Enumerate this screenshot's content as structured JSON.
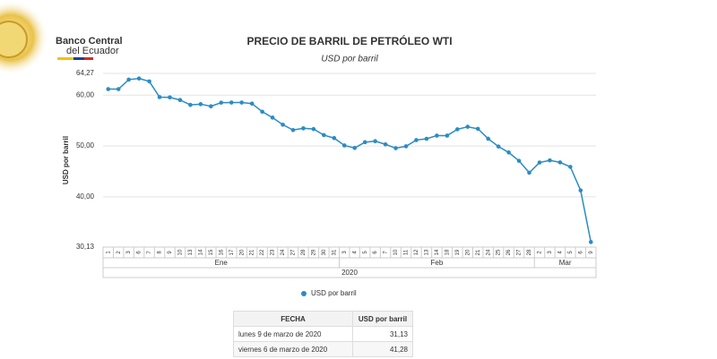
{
  "header": {
    "brand_line1": "Banco Central",
    "brand_line2": "del Ecuador"
  },
  "chart_data": {
    "type": "line",
    "title": "PRECIO DE BARRIL DE PETRÓLEO WTI",
    "subtitle": "USD por barril",
    "ylabel": "USD por barril",
    "categories": [
      "1",
      "2",
      "3",
      "6",
      "7",
      "8",
      "9",
      "10",
      "13",
      "14",
      "15",
      "16",
      "17",
      "20",
      "21",
      "22",
      "23",
      "24",
      "27",
      "28",
      "29",
      "30",
      "31",
      "3",
      "4",
      "5",
      "6",
      "7",
      "10",
      "11",
      "12",
      "13",
      "14",
      "18",
      "19",
      "20",
      "21",
      "24",
      "25",
      "26",
      "27",
      "28",
      "2",
      "3",
      "4",
      "5",
      "6",
      "9"
    ],
    "month_labels": [
      "Ene",
      "Feb",
      "Mar"
    ],
    "year_label": "2020",
    "series": [
      {
        "name": "USD por barril",
        "color": "#2b8cc4",
        "values": [
          61.18,
          61.18,
          63.05,
          63.27,
          62.7,
          59.61,
          59.56,
          59.04,
          58.08,
          58.23,
          57.81,
          58.52,
          58.54,
          58.54,
          58.34,
          56.74,
          55.59,
          54.19,
          53.14,
          53.48,
          53.33,
          52.14,
          51.56,
          50.11,
          49.61,
          50.75,
          50.95,
          50.32,
          49.57,
          49.94,
          51.17,
          51.42,
          52.05,
          52.05,
          53.29,
          53.78,
          53.38,
          51.43,
          49.9,
          48.73,
          47.09,
          44.76,
          46.75,
          47.18,
          46.78,
          45.9,
          41.28,
          31.13
        ]
      }
    ],
    "ylim": [
      30.13,
      64.27
    ],
    "yticks": [
      {
        "value": 30.13,
        "label": "30,13"
      },
      {
        "value": 40,
        "label": "40,00"
      },
      {
        "value": 50,
        "label": "50,00"
      },
      {
        "value": 60,
        "label": "60,00"
      },
      {
        "value": 64.27,
        "label": "64,27"
      }
    ],
    "grid": true
  },
  "table": {
    "header": [
      "FECHA",
      "USD por barril"
    ],
    "rows": [
      [
        "lunes 9 de marzo de 2020",
        "31,13"
      ],
      [
        "viernes 6 de marzo de 2020",
        "41,28"
      ]
    ]
  }
}
